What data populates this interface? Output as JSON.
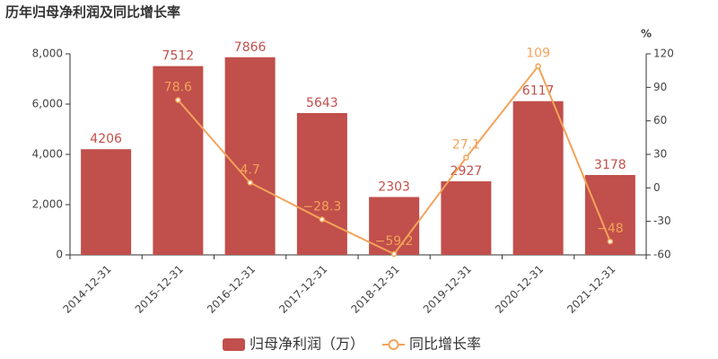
{
  "chart_data": {
    "type": "bar",
    "title": "历年归母净利润及同比增长率",
    "categories": [
      "2014-12-31",
      "2015-12-31",
      "2016-12-31",
      "2017-12-31",
      "2018-12-31",
      "2019-12-31",
      "2020-12-31",
      "2021-12-31"
    ],
    "series": [
      {
        "name": "归母净利润（万）",
        "type": "bar",
        "color": "#c14f4b",
        "values": [
          4206,
          7512,
          7866,
          5643,
          2303,
          2927,
          6117,
          3178
        ]
      },
      {
        "name": "同比增长率",
        "type": "line",
        "axis": "y2",
        "color": "#f3a35a",
        "values": [
          null,
          78.6,
          4.7,
          -28.3,
          -59.2,
          27.1,
          109,
          -48
        ],
        "value_labels": [
          null,
          "78.6",
          "4.7",
          "−28.3",
          "−59.2",
          "27.1",
          "109",
          "−48"
        ]
      }
    ],
    "ylim": [
      0,
      8000
    ],
    "yticks": [
      0,
      {
        "value": 2000,
        "label": "2,000"
      },
      {
        "value": 4000,
        "label": "4,000"
      },
      {
        "value": 6000,
        "label": "6,000"
      },
      {
        "value": 8000,
        "label": "8,000"
      }
    ],
    "y2label": "%",
    "y2lim": [
      -60,
      120
    ],
    "y2ticks": [
      -60,
      -30,
      0,
      30,
      60,
      90,
      120
    ],
    "legend": "bottom"
  }
}
